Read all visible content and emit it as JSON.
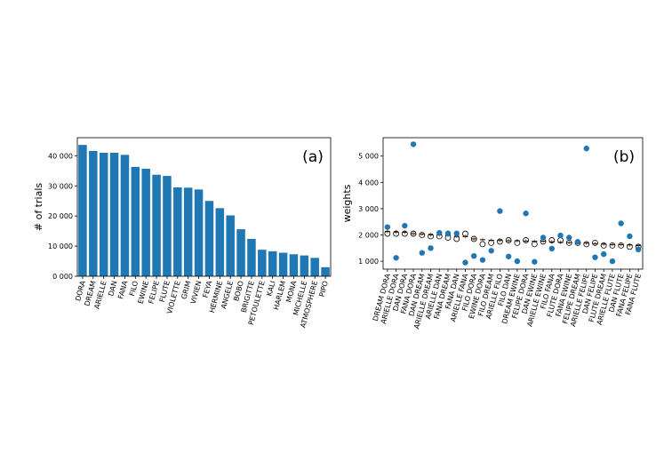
{
  "chart_data": [
    {
      "type": "bar",
      "panel_label": "(a)",
      "ylabel": "# of trials",
      "xlabel": "",
      "ylim": [
        0,
        46000
      ],
      "yticks": [
        0,
        10000,
        20000,
        30000,
        40000
      ],
      "ytick_labels": [
        "0 000",
        "10 000",
        "20 000",
        "30 000",
        "40 000"
      ],
      "bar_color": "#1f77b4",
      "categories": [
        "DORA",
        "DREAM",
        "ARIELLE",
        "DAN",
        "FANA",
        "FILO",
        "EWINE",
        "FELIPE",
        "FLUTE",
        "VIOLETTE",
        "GRIM",
        "VIVIEN",
        "FEYA",
        "HERMINE",
        "ANGELE",
        "BOBO",
        "BRIGITTE",
        "PETOULETTE",
        "KALI",
        "HARLEM",
        "MONA",
        "MICHELLE",
        "ATMOSPHERE",
        "PIPO"
      ],
      "values": [
        43600,
        41600,
        41000,
        41000,
        40300,
        36300,
        35700,
        33700,
        33300,
        29500,
        29400,
        28800,
        25000,
        22600,
        20200,
        15600,
        12400,
        8800,
        8300,
        7800,
        7300,
        6900,
        6100,
        3000
      ]
    },
    {
      "type": "scatter",
      "panel_label": "(b)",
      "ylabel": "weights",
      "xlabel": "",
      "ylim": [
        700,
        5700
      ],
      "yticks": [
        1000,
        2000,
        3000,
        4000,
        5000
      ],
      "ytick_labels": [
        "1 000",
        "2 000",
        "3 000",
        "4 000",
        "5 000"
      ],
      "point_color": "#1f77b4",
      "mean_color": "#d2691e",
      "categories": [
        "DREAM DORA",
        "ARIELLE DORA",
        "DAN DORA",
        "FANA DORA",
        "DAN DREAM",
        "ARIELLE DREAM",
        "ARIELLE DAN",
        "FANA DREAM",
        "FANA DAN",
        "ARIELLE FANA",
        "FILO DORA",
        "EWINE DORA",
        "FILO DREAM",
        "ARIELLE FILO",
        "FILO DAN",
        "DREAM EWINE",
        "FELIPE DORA",
        "DAN EWINE",
        "ARIELLE EWINE",
        "FILO FANA",
        "FLUTE DORA",
        "FANA EWINE",
        "FELIPE DREAM",
        "ARIELLE FELIPE",
        "DAN FELIPE",
        "FLUTE DREAM",
        "ARIELLE FLUTE",
        "DAN FLUTE",
        "FANA FELIPE",
        "FANA FLUTE"
      ],
      "series": [
        {
          "name": "observed",
          "marker": "filled-circle",
          "values": [
            2300,
            1130,
            2350,
            5450,
            1320,
            1500,
            2080,
            2060,
            2060,
            950,
            1200,
            1050,
            1400,
            2910,
            1180,
            1000,
            2820,
            980,
            1900,
            1480,
            1980,
            1900,
            1740,
            5290,
            1150,
            1270,
            1000,
            2440,
            1950,
            1450
          ]
        },
        {
          "name": "sampled",
          "marker": "open-circle",
          "values": [
            2050,
            2050,
            2050,
            2050,
            2000,
            1950,
            1950,
            1900,
            1850,
            2050,
            1850,
            1650,
            1700,
            1750,
            1800,
            1700,
            1800,
            1650,
            1750,
            1800,
            1800,
            1700,
            1700,
            1650,
            1700,
            1600,
            1600,
            1600,
            1550,
            1550
          ]
        },
        {
          "name": "mean",
          "marker": "errorbar",
          "values": [
            2130,
            2110,
            2100,
            2050,
            2030,
            2000,
            2000,
            1980,
            1950,
            1940,
            1850,
            1820,
            1800,
            1790,
            1780,
            1780,
            1770,
            1760,
            1760,
            1740,
            1720,
            1710,
            1700,
            1690,
            1670,
            1650,
            1630,
            1630,
            1620,
            1600
          ],
          "errors": [
            80,
            80,
            80,
            80,
            70,
            70,
            70,
            70,
            70,
            70,
            70,
            70,
            70,
            70,
            70,
            70,
            70,
            70,
            70,
            70,
            70,
            70,
            70,
            70,
            70,
            70,
            70,
            70,
            70,
            70
          ]
        }
      ]
    }
  ]
}
